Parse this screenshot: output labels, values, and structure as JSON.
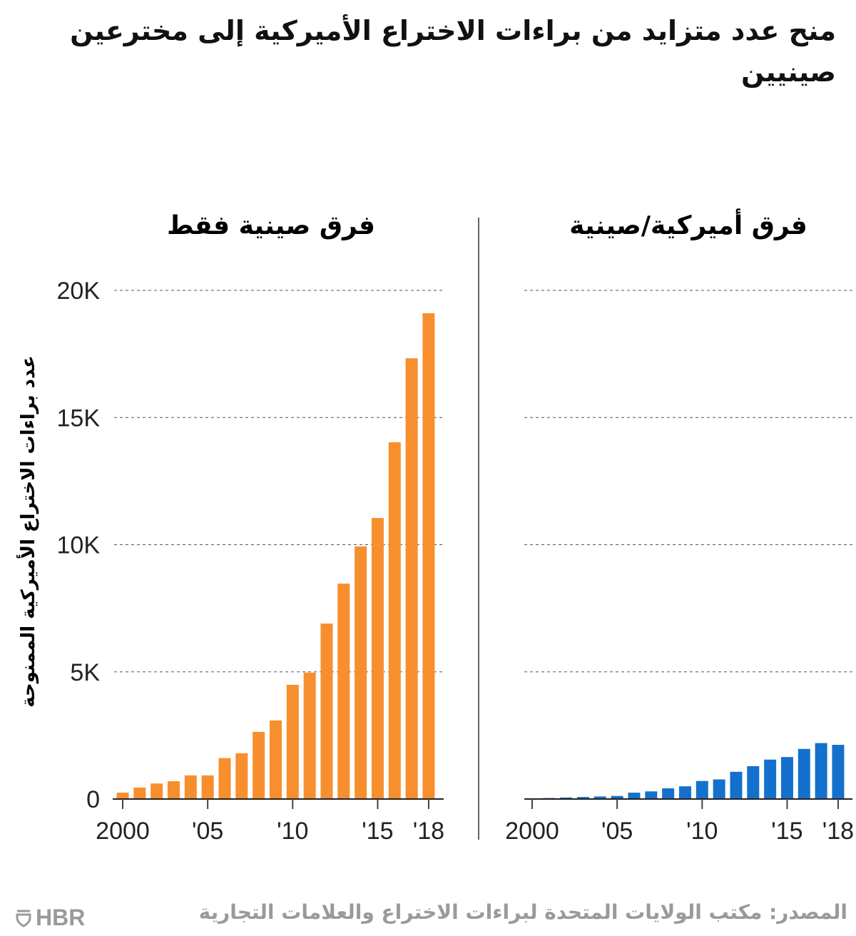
{
  "title": "منح عدد متزايد من براءات الاختراع الأميركية إلى مخترعين صينيين",
  "source": "المصدر: مكتب الولايات المتحدة لبراءات الاختراع والعلامات التجارية",
  "logo": "HBR",
  "colors": {
    "chinese_only": "#f78f2e",
    "us_chinese": "#1470cc"
  },
  "chart_data": [
    {
      "type": "bar",
      "title": "فرق صينية فقط",
      "ylabel": "عدد براءات الاختراع الأميركية الممنوحة",
      "x": [
        2000,
        2001,
        2002,
        2003,
        2004,
        2005,
        2006,
        2007,
        2008,
        2009,
        2010,
        2011,
        2012,
        2013,
        2014,
        2015,
        2016,
        2017,
        2018
      ],
      "values": [
        250,
        450,
        610,
        700,
        930,
        930,
        1610,
        1800,
        2640,
        3090,
        4490,
        4970,
        6900,
        8470,
        9930,
        11050,
        14030,
        17330,
        19100
      ],
      "xticks": [
        {
          "x": 2000,
          "label": "2000"
        },
        {
          "x": 2005,
          "label": "'05"
        },
        {
          "x": 2010,
          "label": "'10"
        },
        {
          "x": 2015,
          "label": "'15"
        },
        {
          "x": 2018,
          "label": "'18"
        }
      ],
      "yticks": [
        {
          "y": 0,
          "label": "0"
        },
        {
          "y": 5000,
          "label": "5K"
        },
        {
          "y": 10000,
          "label": "10K"
        },
        {
          "y": 15000,
          "label": "15K"
        },
        {
          "y": 20000,
          "label": "20K"
        }
      ],
      "ylim": [
        0,
        20000
      ],
      "grid": true
    },
    {
      "type": "bar",
      "title": "فرق أميركية/صينية",
      "x": [
        2000,
        2001,
        2002,
        2003,
        2004,
        2005,
        2006,
        2007,
        2008,
        2009,
        2010,
        2011,
        2012,
        2013,
        2014,
        2015,
        2016,
        2017,
        2018
      ],
      "values": [
        20,
        40,
        60,
        80,
        100,
        120,
        250,
        300,
        420,
        500,
        710,
        770,
        1070,
        1290,
        1550,
        1650,
        1970,
        2200,
        2130
      ],
      "xticks": [
        {
          "x": 2000,
          "label": "2000"
        },
        {
          "x": 2005,
          "label": "'05"
        },
        {
          "x": 2010,
          "label": "'10"
        },
        {
          "x": 2015,
          "label": "'15"
        },
        {
          "x": 2018,
          "label": "'18"
        }
      ],
      "ylim": [
        0,
        20000
      ],
      "grid": true
    }
  ]
}
